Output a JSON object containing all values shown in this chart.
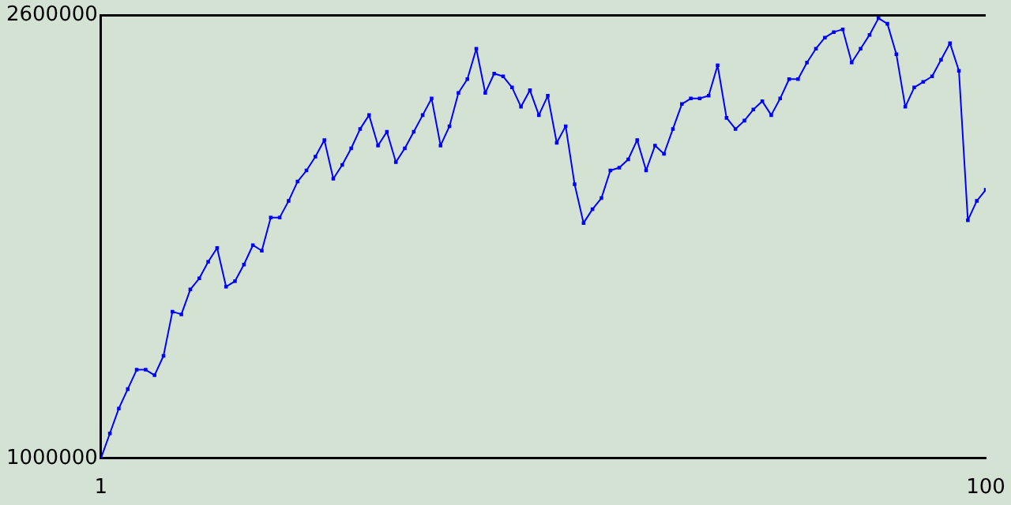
{
  "chart_data": {
    "type": "line",
    "marker": "square",
    "grid": false,
    "legend": false,
    "xlim": [
      1,
      100
    ],
    "xticks": [
      1,
      100
    ],
    "ylim": [
      1000000,
      2600000
    ],
    "yticks": [
      1000000,
      2600000
    ],
    "x": [
      1,
      2,
      3,
      4,
      5,
      6,
      7,
      8,
      9,
      10,
      11,
      12,
      13,
      14,
      15,
      16,
      17,
      18,
      19,
      20,
      21,
      22,
      23,
      24,
      25,
      26,
      27,
      28,
      29,
      30,
      31,
      32,
      33,
      34,
      35,
      36,
      37,
      38,
      39,
      40,
      41,
      42,
      43,
      44,
      45,
      46,
      47,
      48,
      49,
      50,
      51,
      52,
      53,
      54,
      55,
      56,
      57,
      58,
      59,
      60,
      61,
      62,
      63,
      64,
      65,
      66,
      67,
      68,
      69,
      70,
      71,
      72,
      73,
      74,
      75,
      76,
      77,
      78,
      79,
      80,
      81,
      82,
      83,
      84,
      85,
      86,
      87,
      88,
      89,
      90,
      91,
      92,
      93,
      94,
      95,
      96,
      97,
      98,
      99,
      100
    ],
    "series": [
      {
        "color": "#0000ff",
        "values": [
          1000000,
          1090000,
          1180000,
          1250000,
          1320000,
          1320000,
          1300000,
          1370000,
          1530000,
          1520000,
          1610000,
          1650000,
          1710000,
          1760000,
          1620000,
          1640000,
          1700000,
          1770000,
          1750000,
          1870000,
          1870000,
          1930000,
          2000000,
          2040000,
          2090000,
          2150000,
          2010000,
          2060000,
          2120000,
          2190000,
          2240000,
          2130000,
          2180000,
          2070000,
          2120000,
          2180000,
          2240000,
          2300000,
          2130000,
          2200000,
          2320000,
          2370000,
          2480000,
          2320000,
          2390000,
          2380000,
          2340000,
          2270000,
          2330000,
          2240000,
          2310000,
          2140000,
          2200000,
          1990000,
          1850000,
          1900000,
          1940000,
          2040000,
          2050000,
          2080000,
          2150000,
          2040000,
          2130000,
          2100000,
          2190000,
          2280000,
          2300000,
          2300000,
          2310000,
          2420000,
          2230000,
          2190000,
          2220000,
          2260000,
          2290000,
          2240000,
          2300000,
          2370000,
          2370000,
          2430000,
          2480000,
          2520000,
          2540000,
          2550000,
          2430000,
          2480000,
          2530000,
          2590000,
          2570000,
          2460000,
          2270000,
          2340000,
          2360000,
          2380000,
          2440000,
          2500000,
          2400000,
          1860000,
          1930000,
          1970000
        ]
      }
    ]
  }
}
